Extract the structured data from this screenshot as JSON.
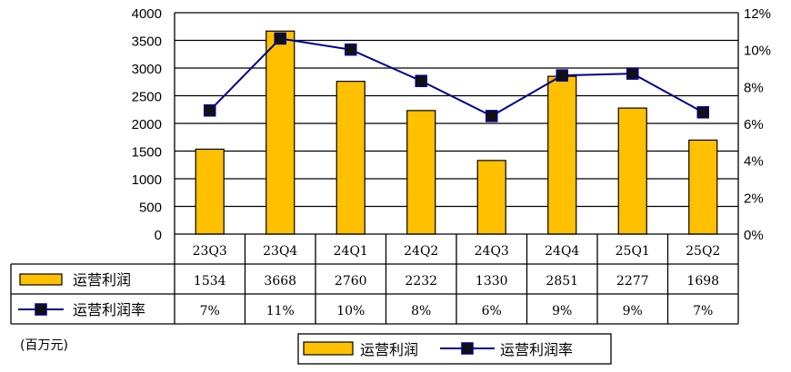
{
  "chart_data": {
    "type": "bar",
    "categories": [
      "23Q3",
      "23Q4",
      "24Q1",
      "24Q2",
      "24Q3",
      "24Q4",
      "25Q1",
      "25Q2"
    ],
    "series": [
      {
        "name": "运营利润",
        "type": "bar",
        "axis": "left",
        "color": "#FFC000",
        "values": [
          1534,
          3668,
          2760,
          2232,
          1330,
          2851,
          2277,
          1698
        ],
        "table_labels": [
          "1534",
          "3668",
          "2760",
          "2232",
          "1330",
          "2851",
          "2277",
          "1698"
        ]
      },
      {
        "name": "运营利润率",
        "type": "line",
        "axis": "right",
        "color": "#00008B",
        "values": [
          6.7,
          10.6,
          10.0,
          8.3,
          6.4,
          8.6,
          8.7,
          6.6
        ],
        "table_labels": [
          "7%",
          "11%",
          "10%",
          "8%",
          "6%",
          "9%",
          "9%",
          "7%"
        ]
      }
    ],
    "y_left": {
      "ylim": [
        0,
        4000
      ],
      "ticks": [
        "0",
        "500",
        "1000",
        "1500",
        "2000",
        "2500",
        "3000",
        "3500",
        "4000"
      ]
    },
    "y_right": {
      "ylim": [
        0,
        12
      ],
      "ticks": [
        "0%",
        "2%",
        "4%",
        "6%",
        "8%",
        "10%",
        "12%"
      ]
    },
    "unit_label": "(百万元)",
    "legend": {
      "position": "bottom",
      "entries": [
        "运营利润",
        "运营利润率"
      ]
    },
    "grid": true
  }
}
